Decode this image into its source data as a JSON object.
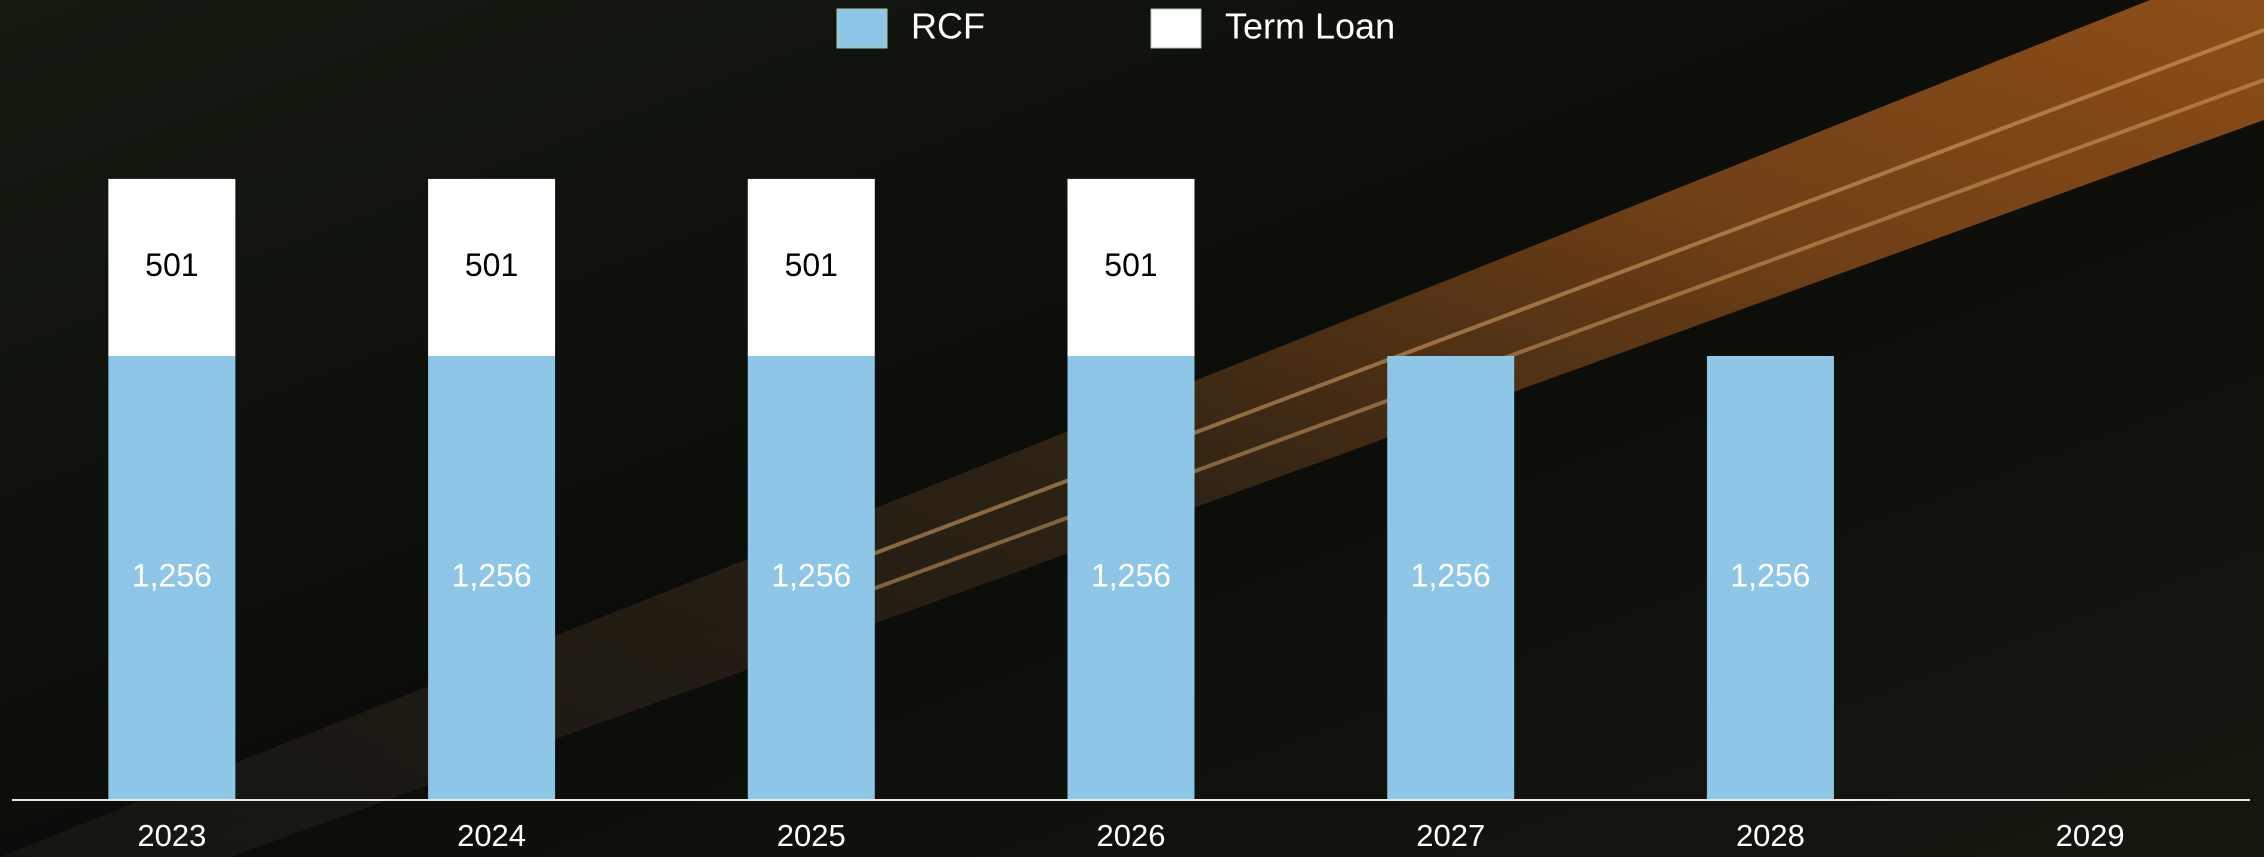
{
  "chart_data": {
    "type": "stacked-bar",
    "categories": [
      "2023",
      "2024",
      "2025",
      "2026",
      "2027",
      "2028",
      "2029"
    ],
    "series": [
      {
        "name": "RCF",
        "color": "#8ec6e8",
        "label_color": "#ffffff",
        "values": [
          1256,
          1256,
          1256,
          1256,
          1256,
          1256,
          null
        ],
        "value_labels": [
          "1,256",
          "1,256",
          "1,256",
          "1,256",
          "1,256",
          "1,256",
          null
        ]
      },
      {
        "name": "Term Loan",
        "color": "#ffffff",
        "label_color": "#000000",
        "values": [
          501,
          501,
          501,
          501,
          null,
          null,
          null
        ]
      }
    ]
  }
}
